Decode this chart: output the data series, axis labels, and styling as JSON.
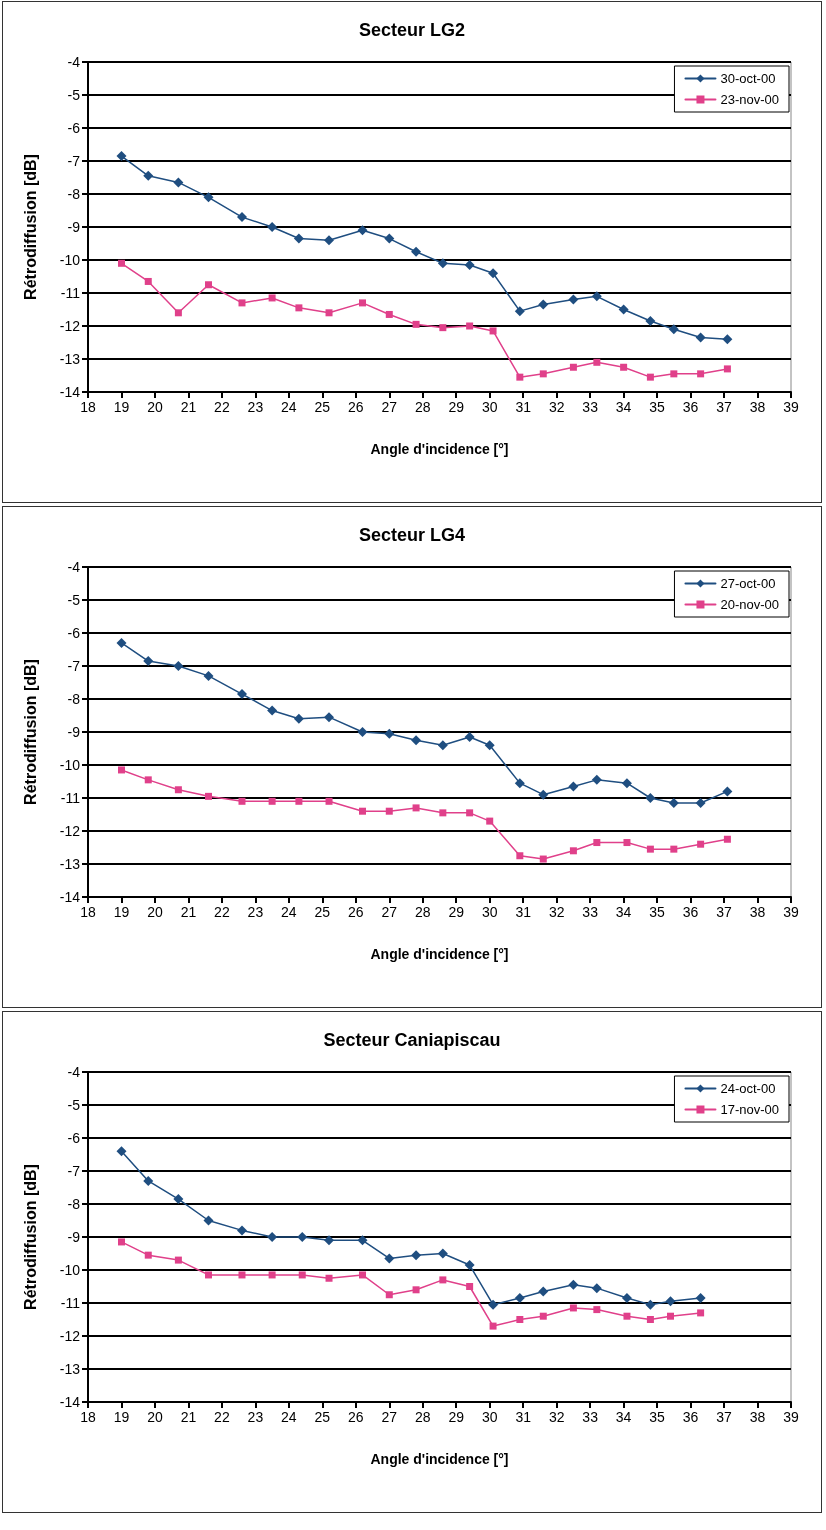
{
  "chart_data": [
    {
      "type": "line",
      "title": "Secteur LG2",
      "xlabel": "Angle d'incidence [°]",
      "ylabel": "Rétrodiffusion [dB]",
      "xlim": [
        18,
        39
      ],
      "xticks": [
        18,
        19,
        20,
        21,
        22,
        23,
        24,
        25,
        26,
        27,
        28,
        29,
        30,
        31,
        32,
        33,
        34,
        35,
        36,
        37,
        38,
        39
      ],
      "ylim": [
        -14,
        -4
      ],
      "yticks": [
        -14,
        -13,
        -12,
        -11,
        -10,
        -9,
        -8,
        -7,
        -6,
        -5,
        -4
      ],
      "grid": "y",
      "legend": "top right",
      "x": [
        19.0,
        19.8,
        20.7,
        21.6,
        22.6,
        23.5,
        24.3,
        25.2,
        26.2,
        27.0,
        27.8,
        28.6,
        29.4,
        30.1,
        30.9,
        31.6,
        32.5,
        33.2,
        34.0,
        34.8,
        35.5,
        36.3,
        37.1
      ],
      "series": [
        {
          "name": "30-oct-00",
          "color": "#1f4e80",
          "marker": "diamond",
          "values": [
            -6.85,
            -7.45,
            -7.65,
            -8.1,
            -8.7,
            -9.0,
            -9.35,
            -9.4,
            -9.1,
            -9.35,
            -9.75,
            -10.1,
            -10.15,
            -10.4,
            -11.55,
            -11.35,
            -11.2,
            -11.1,
            -11.5,
            -11.85,
            -12.1,
            -12.35,
            -12.4
          ]
        },
        {
          "name": "23-nov-00",
          "color": "#e0408a",
          "marker": "square",
          "values": [
            -10.1,
            -10.65,
            -11.6,
            -10.75,
            -11.3,
            -11.15,
            -11.45,
            -11.6,
            -11.3,
            -11.65,
            -11.95,
            -12.05,
            -12.0,
            -12.15,
            -13.55,
            -13.45,
            -13.25,
            -13.1,
            -13.25,
            -13.55,
            -13.45,
            -13.45,
            -13.3
          ]
        }
      ]
    },
    {
      "type": "line",
      "title": "Secteur LG4",
      "xlabel": "Angle d'incidence [°]",
      "ylabel": "Rétrodiffusion [dB]",
      "xlim": [
        18,
        39
      ],
      "xticks": [
        18,
        19,
        20,
        21,
        22,
        23,
        24,
        25,
        26,
        27,
        28,
        29,
        30,
        31,
        32,
        33,
        34,
        35,
        36,
        37,
        38,
        39
      ],
      "ylim": [
        -14,
        -4
      ],
      "yticks": [
        -14,
        -13,
        -12,
        -11,
        -10,
        -9,
        -8,
        -7,
        -6,
        -5,
        -4
      ],
      "grid": "y",
      "legend": "top right",
      "x": [
        19.0,
        19.8,
        20.7,
        21.6,
        22.6,
        23.5,
        24.3,
        25.2,
        26.2,
        27.0,
        27.8,
        28.6,
        29.4,
        30.0,
        30.9,
        31.6,
        32.5,
        33.2,
        34.1,
        34.8,
        35.5,
        36.3,
        37.1
      ],
      "series": [
        {
          "name": "27-oct-00",
          "color": "#1f4e80",
          "marker": "diamond",
          "values": [
            -6.3,
            -6.85,
            -7.0,
            -7.3,
            -7.85,
            -8.35,
            -8.6,
            -8.55,
            -9.0,
            -9.05,
            -9.25,
            -9.4,
            -9.15,
            -9.4,
            -10.55,
            -10.9,
            -10.65,
            -10.45,
            -10.55,
            -11.0,
            -11.15,
            -11.15,
            -10.8
          ]
        },
        {
          "name": "20-nov-00",
          "color": "#e0408a",
          "marker": "square",
          "values": [
            -10.15,
            -10.45,
            -10.75,
            -10.95,
            -11.1,
            -11.1,
            -11.1,
            -11.1,
            -11.4,
            -11.4,
            -11.3,
            -11.45,
            -11.45,
            -11.7,
            -12.75,
            -12.85,
            -12.6,
            -12.35,
            -12.35,
            -12.55,
            -12.55,
            -12.4,
            -12.25
          ]
        }
      ]
    },
    {
      "type": "line",
      "title": "Secteur Caniapiscau",
      "xlabel": "Angle d'incidence [°]",
      "ylabel": "Rétrodiffusion [dB]",
      "xlim": [
        18,
        39
      ],
      "xticks": [
        18,
        19,
        20,
        21,
        22,
        23,
        24,
        25,
        26,
        27,
        28,
        29,
        30,
        31,
        32,
        33,
        34,
        35,
        36,
        37,
        38,
        39
      ],
      "ylim": [
        -14,
        -4
      ],
      "yticks": [
        -14,
        -13,
        -12,
        -11,
        -10,
        -9,
        -8,
        -7,
        -6,
        -5,
        -4
      ],
      "grid": "y",
      "legend": "top right",
      "x": [
        19.0,
        19.8,
        20.7,
        21.6,
        22.6,
        23.5,
        24.4,
        25.2,
        26.2,
        27.0,
        27.8,
        28.6,
        29.4,
        30.1,
        30.9,
        31.6,
        32.5,
        33.2,
        34.1,
        34.8,
        35.4,
        36.3
      ],
      "series": [
        {
          "name": "24-oct-00",
          "color": "#1f4e80",
          "marker": "diamond",
          "values": [
            -6.4,
            -7.3,
            -7.85,
            -8.5,
            -8.8,
            -9.0,
            -9.0,
            -9.1,
            -9.1,
            -9.65,
            -9.55,
            -9.5,
            -9.85,
            -11.05,
            -10.85,
            -10.65,
            -10.45,
            -10.55,
            -10.85,
            -11.05,
            -10.95,
            -10.85
          ]
        },
        {
          "name": "17-nov-00",
          "color": "#e0408a",
          "marker": "square",
          "values": [
            -9.15,
            -9.55,
            -9.7,
            -10.15,
            -10.15,
            -10.15,
            -10.15,
            -10.25,
            -10.15,
            -10.75,
            -10.6,
            -10.3,
            -10.5,
            -11.7,
            -11.5,
            -11.4,
            -11.15,
            -11.2,
            -11.4,
            -11.5,
            -11.4,
            -11.3
          ]
        }
      ]
    }
  ]
}
